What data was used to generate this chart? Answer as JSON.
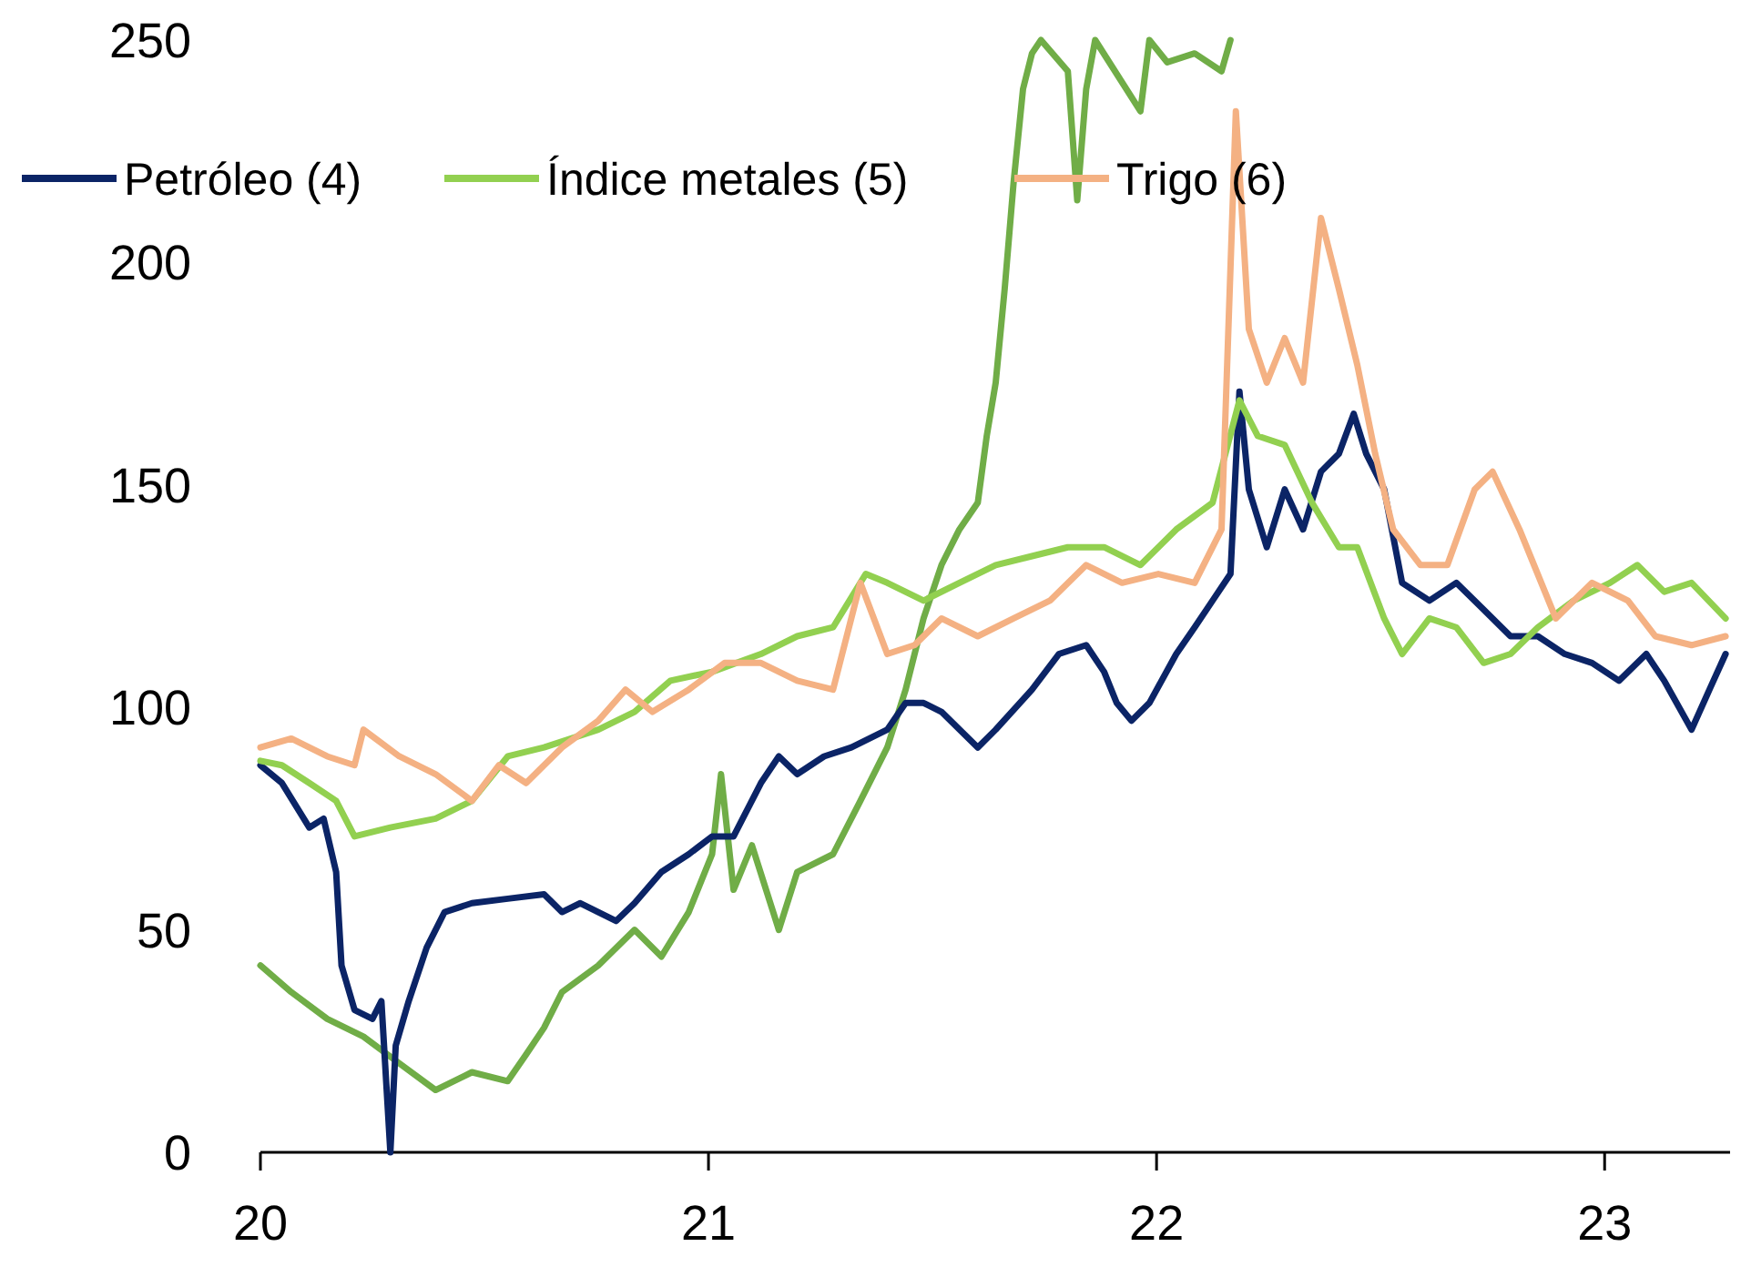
{
  "chart_data": {
    "type": "line",
    "xlim": [
      2020,
      2023.28
    ],
    "xticks": [
      {
        "value": 2020,
        "label": "20"
      },
      {
        "value": 2021,
        "label": "21"
      },
      {
        "value": 2022,
        "label": "22"
      },
      {
        "value": 2023,
        "label": "23"
      }
    ],
    "ylim": [
      0,
      250
    ],
    "yticks": [
      0,
      50,
      100,
      150,
      200,
      250
    ],
    "grid": false,
    "legend": "top left",
    "line_style": "solid",
    "marker": "none",
    "series": [
      {
        "name": "Petróleo (4)",
        "color": "#0b2466",
        "x": [
          2020,
          2020.048,
          2020.109,
          2020.141,
          2020.169,
          2020.181,
          2020.21,
          2020.25,
          2020.27,
          2020.29,
          2020.302,
          2020.331,
          2020.371,
          2020.411,
          2020.472,
          2020.552,
          2020.633,
          2020.673,
          2020.714,
          2020.794,
          2020.835,
          2020.895,
          2020.956,
          2021.008,
          2021.056,
          2021.117,
          2021.157,
          2021.198,
          2021.258,
          2021.319,
          2021.399,
          2021.44,
          2021.48,
          2021.52,
          2021.601,
          2021.641,
          2021.722,
          2021.782,
          2021.843,
          2021.883,
          2021.911,
          2021.944,
          2021.984,
          2022.044,
          2022.085,
          2022.125,
          2022.165,
          2022.185,
          2022.206,
          2022.246,
          2022.286,
          2022.327,
          2022.367,
          2022.407,
          2022.44,
          2022.468,
          2022.508,
          2022.548,
          2022.609,
          2022.669,
          2022.73,
          2022.79,
          2022.851,
          2022.911,
          2022.972,
          2023.032,
          2023.093,
          2023.133,
          2023.194,
          2023.234,
          2023.27
        ],
        "values": [
          87,
          83,
          73,
          75,
          63,
          42,
          32,
          30,
          34,
          0,
          24,
          34,
          46,
          54,
          56,
          57,
          58,
          54,
          56,
          52,
          56,
          63,
          67,
          71,
          71,
          83,
          89,
          85,
          89,
          91,
          95,
          101,
          101,
          99,
          91,
          95,
          104,
          112,
          114,
          108,
          101,
          97,
          101,
          112,
          118,
          124,
          130,
          171,
          149,
          136,
          149,
          140,
          153,
          157,
          166,
          157,
          149,
          128,
          124,
          128,
          122,
          116,
          116,
          112,
          110,
          106,
          112,
          106,
          95,
          104,
          112
        ]
      },
      {
        "name": "Índice metales (5)",
        "color": "#92d050",
        "x": [
          2020,
          2020.048,
          2020.109,
          2020.169,
          2020.21,
          2020.29,
          2020.391,
          2020.472,
          2020.552,
          2020.633,
          2020.754,
          2020.835,
          2020.915,
          2021.008,
          2021.117,
          2021.198,
          2021.278,
          2021.351,
          2021.399,
          2021.48,
          2021.56,
          2021.641,
          2021.722,
          2021.802,
          2021.883,
          2021.964,
          2022.044,
          2022.125,
          2022.185,
          2022.226,
          2022.286,
          2022.347,
          2022.407,
          2022.448,
          2022.508,
          2022.548,
          2022.609,
          2022.669,
          2022.73,
          2022.79,
          2022.851,
          2022.931,
          2023.012,
          2023.073,
          2023.133,
          2023.194,
          2023.27
        ],
        "values": [
          88,
          87,
          83,
          79,
          71,
          73,
          75,
          79,
          89,
          91,
          95,
          99,
          106,
          108,
          112,
          116,
          118,
          130,
          128,
          124,
          128,
          132,
          134,
          136,
          136,
          132,
          140,
          146,
          169,
          161,
          159,
          146,
          136,
          136,
          120,
          112,
          120,
          118,
          110,
          112,
          118,
          124,
          128,
          132,
          126,
          128,
          120
        ]
      },
      {
        "name": "Trigo (6)",
        "color": "#f4b183",
        "x": [
          2020,
          2020.069,
          2020.149,
          2020.21,
          2020.23,
          2020.31,
          2020.391,
          2020.472,
          2020.532,
          2020.593,
          2020.673,
          2020.754,
          2020.815,
          2020.875,
          2020.956,
          2021.036,
          2021.117,
          2021.198,
          2021.278,
          2021.339,
          2021.399,
          2021.46,
          2021.52,
          2021.601,
          2021.681,
          2021.762,
          2021.843,
          2021.923,
          2022.004,
          2022.085,
          2022.145,
          2022.177,
          2022.206,
          2022.246,
          2022.286,
          2022.327,
          2022.367,
          2022.407,
          2022.448,
          2022.488,
          2022.528,
          2022.589,
          2022.649,
          2022.71,
          2022.75,
          2022.81,
          2022.891,
          2022.972,
          2023.052,
          2023.113,
          2023.194,
          2023.27
        ],
        "values": [
          91,
          93,
          89,
          87,
          95,
          89,
          85,
          79,
          87,
          83,
          91,
          97,
          104,
          99,
          104,
          110,
          110,
          106,
          104,
          128,
          112,
          114,
          120,
          116,
          120,
          124,
          132,
          128,
          130,
          128,
          140,
          234,
          185,
          173,
          183,
          173,
          210,
          194,
          177,
          157,
          140,
          132,
          132,
          149,
          153,
          140,
          120,
          128,
          124,
          116,
          114,
          116
        ]
      },
      {
        "color": "#70ad47",
        "x": [
          2020,
          2020.069,
          2020.149,
          2020.23,
          2020.31,
          2020.391,
          2020.472,
          2020.552,
          2020.593,
          2020.633,
          2020.673,
          2020.754,
          2020.835,
          2020.895,
          2020.956,
          2021.008,
          2021.028,
          2021.056,
          2021.097,
          2021.157,
          2021.198,
          2021.278,
          2021.339,
          2021.399,
          2021.44,
          2021.48,
          2021.52,
          2021.56,
          2021.601,
          2021.621,
          2021.641,
          2021.661,
          2021.681,
          2021.702,
          2021.722,
          2021.742,
          2021.802,
          2021.823,
          2021.843,
          2021.863,
          2021.964,
          2021.984,
          2022.024,
          2022.085,
          2022.145,
          2022.165
        ],
        "values": [
          42,
          36,
          30,
          26,
          20,
          14,
          18,
          16,
          22,
          28,
          36,
          42,
          50,
          44,
          54,
          67,
          85,
          59,
          69,
          50,
          63,
          67,
          79,
          91,
          104,
          120,
          132,
          140,
          146,
          161,
          173,
          194,
          218,
          239,
          247,
          250,
          243,
          214,
          239,
          250,
          234,
          250,
          245,
          247,
          243,
          250
        ]
      }
    ]
  }
}
